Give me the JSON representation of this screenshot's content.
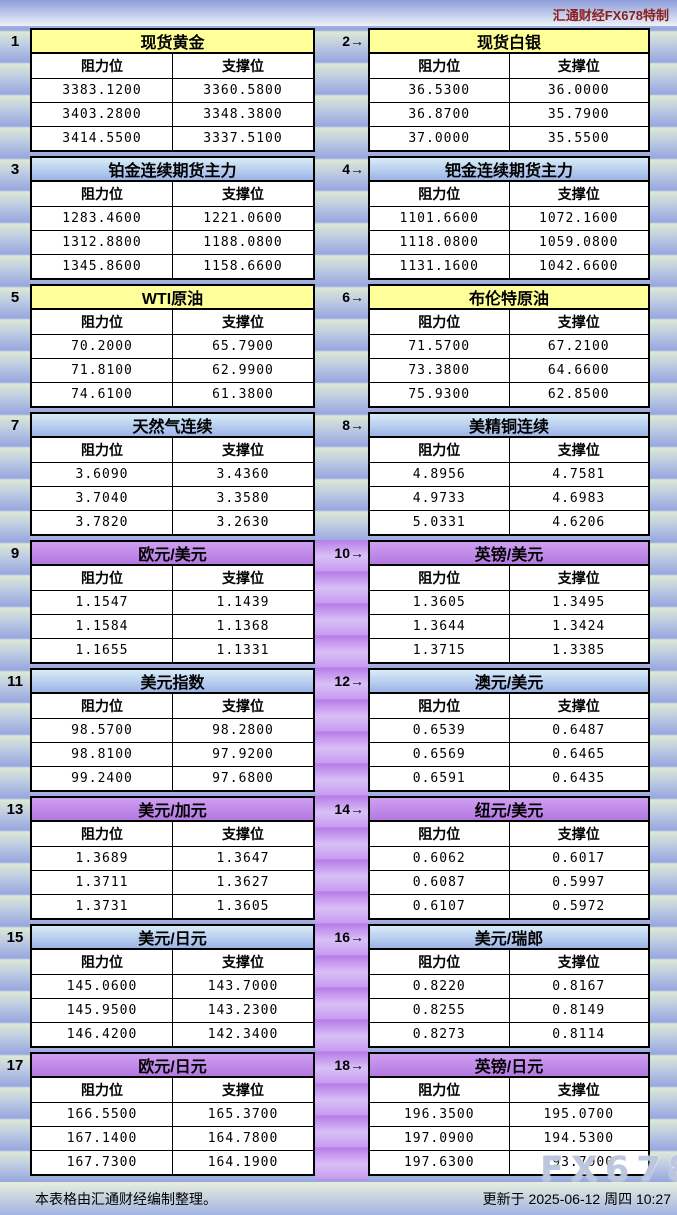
{
  "page": {
    "brand": "汇通财经FX678特制",
    "watermark": "FX678",
    "footer_left": "本表格由汇通财经编制整理。",
    "footer_right": "更新于 2025-06-12 周四 10:27"
  },
  "columns": {
    "resistance": "阻力位",
    "support": "支撑位"
  },
  "colors": {
    "yellow_header": "#FFFF99",
    "blue_header_top": "#D8ECF7",
    "blue_header_bottom": "#9CB4E7",
    "purple_header_top": "#CF9FF2",
    "purple_header_bottom": "#B478E1",
    "stripe_green": "#DBE8D6",
    "stripe_blue": "#97A6DD",
    "purple_stripe_dark": "#B67DE6",
    "purple_stripe_light": "#DABFF7",
    "brand_red": "#8B1E1E"
  },
  "chart_data": {
    "type": "table",
    "tables": [
      {
        "label": "1",
        "title": "现货黄金",
        "theme": "yellow",
        "resistance": [
          "3383.1200",
          "3403.2800",
          "3414.5500"
        ],
        "support": [
          "3360.5800",
          "3348.3800",
          "3337.5100"
        ]
      },
      {
        "label": "2→",
        "title": "现货白银",
        "theme": "yellow",
        "resistance": [
          "36.5300",
          "36.8700",
          "37.0000"
        ],
        "support": [
          "36.0000",
          "35.7900",
          "35.5500"
        ]
      },
      {
        "label": "3",
        "title": "铂金连续期货主力",
        "theme": "blue",
        "resistance": [
          "1283.4600",
          "1312.8800",
          "1345.8600"
        ],
        "support": [
          "1221.0600",
          "1188.0800",
          "1158.6600"
        ]
      },
      {
        "label": "4→",
        "title": "钯金连续期货主力",
        "theme": "blue",
        "resistance": [
          "1101.6600",
          "1118.0800",
          "1131.1600"
        ],
        "support": [
          "1072.1600",
          "1059.0800",
          "1042.6600"
        ]
      },
      {
        "label": "5",
        "title": "WTI原油",
        "theme": "yellow",
        "resistance": [
          "70.2000",
          "71.8100",
          "74.6100"
        ],
        "support": [
          "65.7900",
          "62.9900",
          "61.3800"
        ]
      },
      {
        "label": "6→",
        "title": "布伦特原油",
        "theme": "yellow",
        "resistance": [
          "71.5700",
          "73.3800",
          "75.9300"
        ],
        "support": [
          "67.2100",
          "64.6600",
          "62.8500"
        ]
      },
      {
        "label": "7",
        "title": "天然气连续",
        "theme": "blue",
        "resistance": [
          "3.6090",
          "3.7040",
          "3.7820"
        ],
        "support": [
          "3.4360",
          "3.3580",
          "3.2630"
        ]
      },
      {
        "label": "8→",
        "title": "美精铜连续",
        "theme": "blue",
        "resistance": [
          "4.8956",
          "4.9733",
          "5.0331"
        ],
        "support": [
          "4.7581",
          "4.6983",
          "4.6206"
        ]
      },
      {
        "label": "9",
        "title": "欧元/美元",
        "theme": "purple",
        "resistance": [
          "1.1547",
          "1.1584",
          "1.1655"
        ],
        "support": [
          "1.1439",
          "1.1368",
          "1.1331"
        ]
      },
      {
        "label": "10→",
        "title": "英镑/美元",
        "theme": "purple",
        "resistance": [
          "1.3605",
          "1.3644",
          "1.3715"
        ],
        "support": [
          "1.3495",
          "1.3424",
          "1.3385"
        ]
      },
      {
        "label": "11",
        "title": "美元指数",
        "theme": "blue",
        "resistance": [
          "98.5700",
          "98.8100",
          "99.2400"
        ],
        "support": [
          "98.2800",
          "97.9200",
          "97.6800"
        ]
      },
      {
        "label": "12→",
        "title": "澳元/美元",
        "theme": "blue",
        "resistance": [
          "0.6539",
          "0.6569",
          "0.6591"
        ],
        "support": [
          "0.6487",
          "0.6465",
          "0.6435"
        ]
      },
      {
        "label": "13",
        "title": "美元/加元",
        "theme": "purple",
        "resistance": [
          "1.3689",
          "1.3711",
          "1.3731"
        ],
        "support": [
          "1.3647",
          "1.3627",
          "1.3605"
        ]
      },
      {
        "label": "14→",
        "title": "纽元/美元",
        "theme": "purple",
        "resistance": [
          "0.6062",
          "0.6087",
          "0.6107"
        ],
        "support": [
          "0.6017",
          "0.5997",
          "0.5972"
        ]
      },
      {
        "label": "15",
        "title": "美元/日元",
        "theme": "blue",
        "resistance": [
          "145.0600",
          "145.9500",
          "146.4200"
        ],
        "support": [
          "143.7000",
          "143.2300",
          "142.3400"
        ]
      },
      {
        "label": "16→",
        "title": "美元/瑞郎",
        "theme": "blue",
        "resistance": [
          "0.8220",
          "0.8255",
          "0.8273"
        ],
        "support": [
          "0.8167",
          "0.8149",
          "0.8114"
        ]
      },
      {
        "label": "17",
        "title": "欧元/日元",
        "theme": "purple",
        "resistance": [
          "166.5500",
          "167.1400",
          "167.7300"
        ],
        "support": [
          "165.3700",
          "164.7800",
          "164.1900"
        ]
      },
      {
        "label": "18→",
        "title": "英镑/日元",
        "theme": "purple",
        "resistance": [
          "196.3500",
          "197.0900",
          "197.6300"
        ],
        "support": [
          "195.0700",
          "194.5300",
          "193.7900"
        ]
      }
    ]
  }
}
